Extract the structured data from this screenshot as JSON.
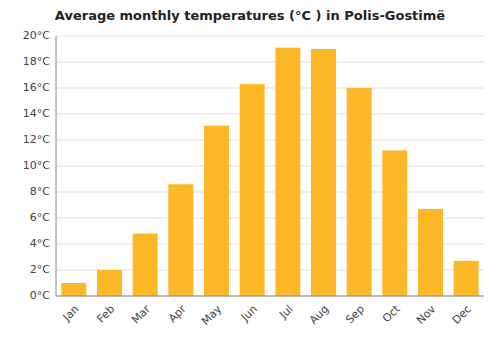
{
  "chart_data": {
    "type": "bar",
    "title": "Average monthly temperatures (°C ) in Polis-Gostimë",
    "categories": [
      "Jan",
      "Feb",
      "Mar",
      "Apr",
      "May",
      "Jun",
      "Jul",
      "Aug",
      "Sep",
      "Oct",
      "Nov",
      "Dec"
    ],
    "values": [
      1.0,
      2.0,
      4.8,
      8.6,
      13.1,
      16.3,
      19.1,
      19.0,
      16.0,
      11.2,
      6.7,
      2.7
    ],
    "color": "#FDB827",
    "ylim": [
      0,
      20
    ],
    "yticks": [
      {
        "value": 0,
        "label": "0°C"
      },
      {
        "value": 2,
        "label": "2°C"
      },
      {
        "value": 4,
        "label": "4°C"
      },
      {
        "value": 6,
        "label": "6°C"
      },
      {
        "value": 8,
        "label": "8°C"
      },
      {
        "value": 10,
        "label": "10°C"
      },
      {
        "value": 12,
        "label": "12°C"
      },
      {
        "value": 14,
        "label": "14°C"
      },
      {
        "value": 16,
        "label": "16°C"
      },
      {
        "value": 18,
        "label": "18°C"
      },
      {
        "value": 20,
        "label": "20°C"
      }
    ],
    "grid": true
  }
}
